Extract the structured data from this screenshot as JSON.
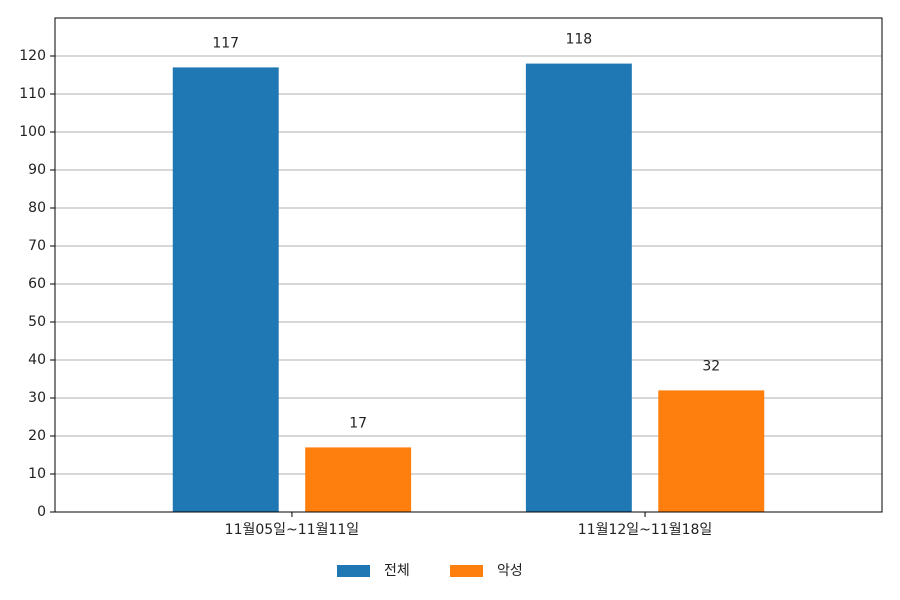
{
  "chart_data": {
    "type": "bar",
    "categories": [
      "11월05일~11월11일",
      "11월12일~11월18일"
    ],
    "series": [
      {
        "name": "전체",
        "color": "#1f77b4",
        "values": [
          117,
          118
        ]
      },
      {
        "name": "악성",
        "color": "#ff7f0e",
        "values": [
          17,
          32
        ]
      }
    ],
    "ylim": [
      0,
      130
    ],
    "yticks": [
      0,
      10,
      20,
      30,
      40,
      50,
      60,
      70,
      80,
      90,
      100,
      110,
      120
    ],
    "grid": true,
    "legend": "bottom"
  }
}
